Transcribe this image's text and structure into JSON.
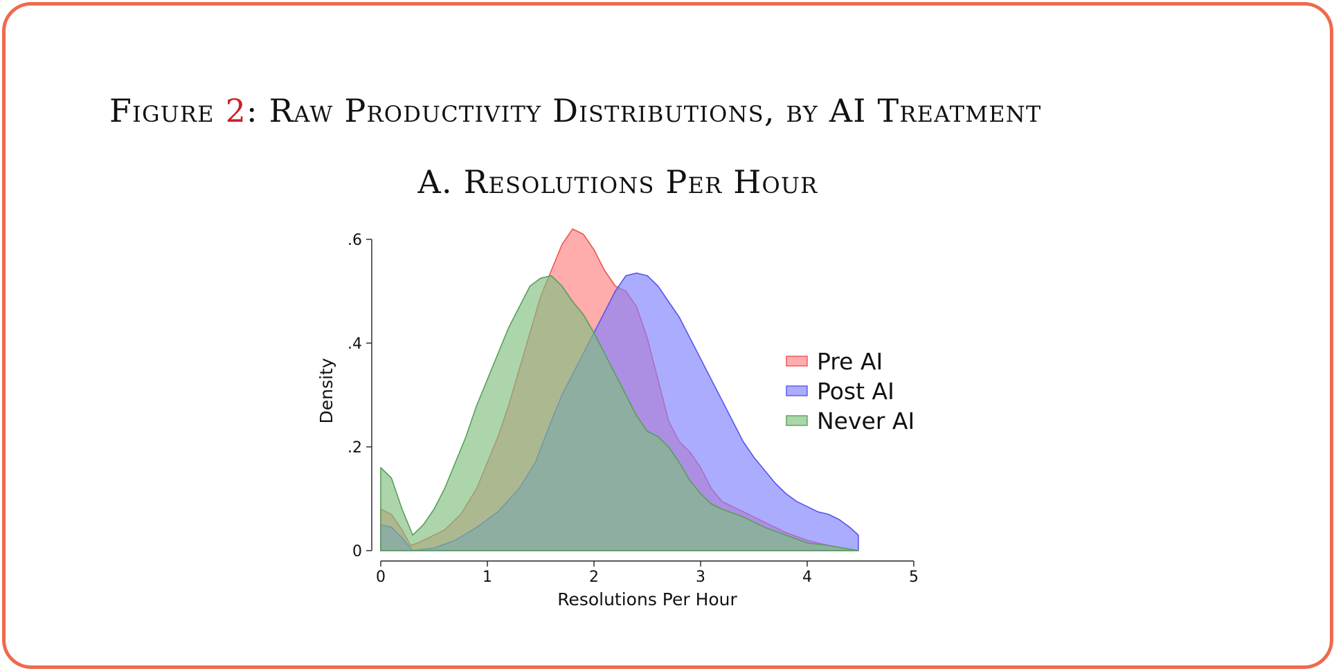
{
  "figure": {
    "prefix": "Figure ",
    "number": "2",
    "title_rest": ": Raw Productivity Distributions, by AI Treatment",
    "panel_title": "A. Resolutions Per Hour"
  },
  "colors": {
    "frame_border": "#ef6a4c",
    "figure_number": "#cc2127"
  },
  "chart_data": {
    "type": "area",
    "title": "A. Resolutions Per Hour",
    "xlabel": "Resolutions Per Hour",
    "ylabel": "Density",
    "xlim": [
      0,
      5
    ],
    "ylim": [
      0,
      0.6
    ],
    "xticks": [
      0,
      1,
      2,
      3,
      4,
      5
    ],
    "xtick_labels": [
      "0",
      "1",
      "2",
      "3",
      "4",
      "5"
    ],
    "yticks": [
      0,
      0.2,
      0.4,
      0.6
    ],
    "ytick_labels": [
      "0",
      ".2",
      ".4",
      ".6"
    ],
    "grid": false,
    "legend_position": "right",
    "series": [
      {
        "name": "Pre AI",
        "fill": "#ff7f7f",
        "stroke": "#ee5555",
        "fill_opacity": 0.65,
        "points": [
          [
            0.0,
            0.08
          ],
          [
            0.1,
            0.07
          ],
          [
            0.2,
            0.04
          ],
          [
            0.28,
            0.01
          ],
          [
            0.35,
            0.015
          ],
          [
            0.5,
            0.03
          ],
          [
            0.6,
            0.04
          ],
          [
            0.75,
            0.07
          ],
          [
            0.9,
            0.12
          ],
          [
            1.0,
            0.17
          ],
          [
            1.1,
            0.22
          ],
          [
            1.2,
            0.28
          ],
          [
            1.3,
            0.35
          ],
          [
            1.4,
            0.42
          ],
          [
            1.5,
            0.49
          ],
          [
            1.6,
            0.54
          ],
          [
            1.7,
            0.59
          ],
          [
            1.8,
            0.62
          ],
          [
            1.9,
            0.61
          ],
          [
            2.0,
            0.58
          ],
          [
            2.1,
            0.54
          ],
          [
            2.2,
            0.51
          ],
          [
            2.3,
            0.5
          ],
          [
            2.4,
            0.47
          ],
          [
            2.5,
            0.41
          ],
          [
            2.6,
            0.33
          ],
          [
            2.7,
            0.25
          ],
          [
            2.8,
            0.21
          ],
          [
            2.9,
            0.19
          ],
          [
            3.0,
            0.16
          ],
          [
            3.1,
            0.12
          ],
          [
            3.2,
            0.095
          ],
          [
            3.4,
            0.075
          ],
          [
            3.6,
            0.055
          ],
          [
            3.8,
            0.035
          ],
          [
            4.0,
            0.02
          ],
          [
            4.2,
            0.01
          ],
          [
            4.48,
            0.0
          ]
        ]
      },
      {
        "name": "Post AI",
        "fill": "#7f7fff",
        "stroke": "#5555ee",
        "fill_opacity": 0.65,
        "points": [
          [
            0.0,
            0.05
          ],
          [
            0.1,
            0.045
          ],
          [
            0.2,
            0.025
          ],
          [
            0.3,
            0.0
          ],
          [
            0.5,
            0.005
          ],
          [
            0.7,
            0.02
          ],
          [
            0.9,
            0.045
          ],
          [
            1.1,
            0.075
          ],
          [
            1.3,
            0.12
          ],
          [
            1.45,
            0.17
          ],
          [
            1.6,
            0.25
          ],
          [
            1.7,
            0.3
          ],
          [
            1.8,
            0.34
          ],
          [
            1.9,
            0.38
          ],
          [
            2.0,
            0.42
          ],
          [
            2.1,
            0.46
          ],
          [
            2.2,
            0.5
          ],
          [
            2.3,
            0.53
          ],
          [
            2.4,
            0.535
          ],
          [
            2.5,
            0.53
          ],
          [
            2.6,
            0.51
          ],
          [
            2.7,
            0.48
          ],
          [
            2.8,
            0.45
          ],
          [
            2.9,
            0.41
          ],
          [
            3.0,
            0.37
          ],
          [
            3.1,
            0.33
          ],
          [
            3.2,
            0.29
          ],
          [
            3.3,
            0.25
          ],
          [
            3.4,
            0.21
          ],
          [
            3.5,
            0.18
          ],
          [
            3.6,
            0.155
          ],
          [
            3.7,
            0.13
          ],
          [
            3.8,
            0.11
          ],
          [
            3.9,
            0.095
          ],
          [
            4.0,
            0.085
          ],
          [
            4.1,
            0.075
          ],
          [
            4.2,
            0.07
          ],
          [
            4.3,
            0.06
          ],
          [
            4.4,
            0.045
          ],
          [
            4.48,
            0.03
          ],
          [
            4.48,
            0.0
          ]
        ]
      },
      {
        "name": "Never AI",
        "fill": "#7fbf7f",
        "stroke": "#55a055",
        "fill_opacity": 0.65,
        "points": [
          [
            0.0,
            0.16
          ],
          [
            0.1,
            0.14
          ],
          [
            0.2,
            0.08
          ],
          [
            0.3,
            0.03
          ],
          [
            0.4,
            0.05
          ],
          [
            0.5,
            0.08
          ],
          [
            0.6,
            0.12
          ],
          [
            0.7,
            0.17
          ],
          [
            0.8,
            0.22
          ],
          [
            0.9,
            0.28
          ],
          [
            1.0,
            0.33
          ],
          [
            1.1,
            0.38
          ],
          [
            1.2,
            0.43
          ],
          [
            1.3,
            0.47
          ],
          [
            1.4,
            0.51
          ],
          [
            1.5,
            0.525
          ],
          [
            1.6,
            0.53
          ],
          [
            1.7,
            0.51
          ],
          [
            1.8,
            0.48
          ],
          [
            1.9,
            0.455
          ],
          [
            2.0,
            0.42
          ],
          [
            2.1,
            0.38
          ],
          [
            2.2,
            0.34
          ],
          [
            2.3,
            0.3
          ],
          [
            2.4,
            0.26
          ],
          [
            2.5,
            0.23
          ],
          [
            2.6,
            0.22
          ],
          [
            2.7,
            0.2
          ],
          [
            2.8,
            0.17
          ],
          [
            2.9,
            0.135
          ],
          [
            3.0,
            0.11
          ],
          [
            3.1,
            0.09
          ],
          [
            3.2,
            0.08
          ],
          [
            3.4,
            0.065
          ],
          [
            3.6,
            0.045
          ],
          [
            3.8,
            0.03
          ],
          [
            4.0,
            0.015
          ],
          [
            4.2,
            0.01
          ],
          [
            4.48,
            0.0
          ]
        ]
      }
    ]
  }
}
